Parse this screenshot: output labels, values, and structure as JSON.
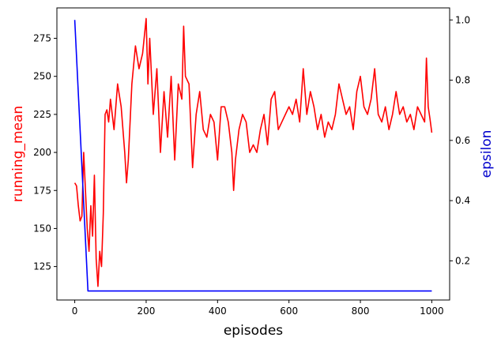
{
  "chart_data": {
    "type": "line",
    "xlabel": "episodes",
    "ylabel_left": "running_mean",
    "ylabel_right": "epsilon",
    "xlim": [
      -50,
      1050
    ],
    "ylim_left": [
      103,
      295
    ],
    "ylim_right": [
      0.07,
      1.04
    ],
    "x_ticks": [
      0,
      200,
      400,
      600,
      800,
      1000
    ],
    "y_left_ticks": [
      125,
      150,
      175,
      200,
      225,
      250,
      275
    ],
    "y_right_ticks": [
      0.2,
      0.4,
      0.6,
      0.8,
      1.0
    ],
    "grid": false,
    "colors": {
      "running_mean": "#ff0000",
      "epsilon": "#0000ff",
      "ylabel_left": "#ff0000",
      "ylabel_right": "#0000cc"
    },
    "series": [
      {
        "name": "running_mean",
        "axis": "left",
        "x": [
          0,
          5,
          10,
          15,
          20,
          25,
          30,
          35,
          40,
          45,
          50,
          55,
          60,
          65,
          70,
          75,
          80,
          85,
          90,
          95,
          100,
          110,
          120,
          130,
          140,
          145,
          150,
          160,
          170,
          180,
          190,
          200,
          205,
          210,
          220,
          230,
          240,
          250,
          260,
          270,
          280,
          290,
          300,
          305,
          310,
          320,
          330,
          340,
          350,
          360,
          370,
          380,
          390,
          400,
          410,
          420,
          430,
          440,
          445,
          450,
          460,
          470,
          480,
          490,
          500,
          510,
          520,
          530,
          540,
          550,
          560,
          570,
          580,
          590,
          600,
          610,
          620,
          630,
          640,
          650,
          660,
          670,
          680,
          690,
          700,
          710,
          720,
          730,
          740,
          750,
          760,
          770,
          780,
          790,
          800,
          810,
          820,
          830,
          840,
          850,
          860,
          870,
          880,
          890,
          900,
          910,
          920,
          930,
          940,
          950,
          960,
          970,
          980,
          985,
          990,
          995,
          1000
        ],
        "values": [
          180,
          178,
          165,
          155,
          158,
          200,
          175,
          150,
          135,
          165,
          145,
          185,
          130,
          112,
          135,
          125,
          160,
          225,
          228,
          220,
          235,
          215,
          245,
          230,
          200,
          180,
          195,
          245,
          270,
          255,
          265,
          288,
          245,
          275,
          225,
          255,
          200,
          240,
          210,
          250,
          195,
          245,
          235,
          283,
          250,
          245,
          190,
          225,
          240,
          215,
          210,
          225,
          220,
          195,
          230,
          230,
          220,
          200,
          175,
          195,
          215,
          225,
          220,
          200,
          205,
          200,
          215,
          225,
          205,
          235,
          240,
          215,
          220,
          225,
          230,
          225,
          235,
          220,
          255,
          225,
          240,
          230,
          215,
          225,
          210,
          220,
          215,
          225,
          245,
          235,
          225,
          230,
          215,
          240,
          250,
          230,
          225,
          235,
          255,
          225,
          220,
          230,
          215,
          225,
          240,
          225,
          230,
          220,
          225,
          215,
          230,
          225,
          220,
          262,
          230,
          222,
          213
        ]
      },
      {
        "name": "epsilon",
        "axis": "right",
        "x": [
          0,
          37,
          40,
          1000
        ],
        "values": [
          1.0,
          0.1,
          0.1,
          0.1
        ]
      }
    ]
  }
}
